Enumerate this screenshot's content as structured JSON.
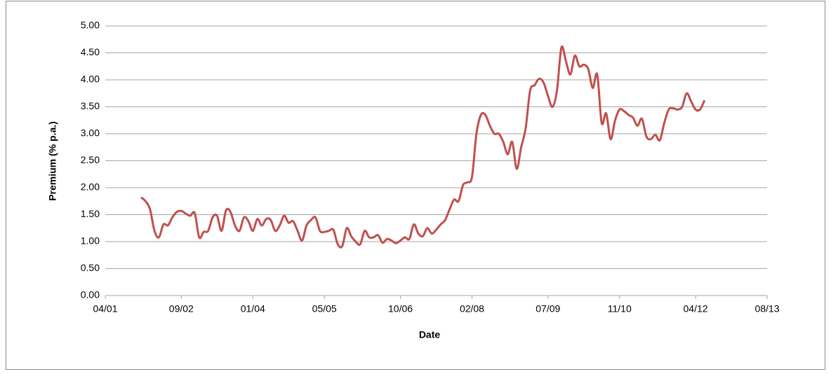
{
  "chart_data": {
    "type": "line",
    "x_label": "Date",
    "y_label": "Premium (% p.a.)",
    "x": [
      "12/01",
      "01/02",
      "02/02",
      "03/02",
      "04/02",
      "05/02",
      "06/02",
      "07/02",
      "08/02",
      "09/02",
      "10/02",
      "11/02",
      "12/02",
      "01/03",
      "02/03",
      "03/03",
      "04/03",
      "05/03",
      "06/03",
      "07/03",
      "08/03",
      "09/03",
      "10/03",
      "11/03",
      "12/03",
      "01/04",
      "02/04",
      "03/04",
      "04/04",
      "05/04",
      "06/04",
      "07/04",
      "08/04",
      "09/04",
      "10/04",
      "11/04",
      "12/04",
      "01/05",
      "02/05",
      "03/05",
      "04/05",
      "05/05",
      "06/05",
      "07/05",
      "08/05",
      "09/05",
      "10/05",
      "11/05",
      "12/05",
      "01/06",
      "02/06",
      "03/06",
      "04/06",
      "05/06",
      "06/06",
      "07/06",
      "08/06",
      "09/06",
      "10/06",
      "11/06",
      "12/06",
      "01/07",
      "02/07",
      "03/07",
      "04/07",
      "05/07",
      "06/07",
      "07/07",
      "08/07",
      "09/07",
      "10/07",
      "11/07",
      "12/07",
      "01/08",
      "02/08",
      "03/08",
      "04/08",
      "05/08",
      "06/08",
      "07/08",
      "08/08",
      "09/08",
      "10/08",
      "11/08",
      "12/08",
      "01/09",
      "02/09",
      "03/09",
      "04/09",
      "05/09",
      "06/09",
      "07/09",
      "08/09",
      "09/09",
      "10/09",
      "11/09",
      "12/09",
      "01/10",
      "02/10",
      "03/10",
      "04/10",
      "05/10",
      "06/10",
      "07/10",
      "08/10",
      "09/10",
      "10/10",
      "11/10",
      "12/10",
      "01/11",
      "02/11",
      "03/11",
      "04/11",
      "05/11",
      "06/11",
      "07/11",
      "08/11",
      "09/11",
      "10/11",
      "11/11",
      "12/11",
      "01/12",
      "02/12",
      "03/12",
      "04/12",
      "05/12",
      "06/12"
    ],
    "series": [
      {
        "name": "Premium",
        "color": "#c0504d",
        "values": [
          1.82,
          1.75,
          1.6,
          1.2,
          1.08,
          1.32,
          1.3,
          1.45,
          1.55,
          1.57,
          1.52,
          1.48,
          1.53,
          1.08,
          1.18,
          1.2,
          1.45,
          1.48,
          1.2,
          1.58,
          1.55,
          1.3,
          1.2,
          1.45,
          1.38,
          1.2,
          1.42,
          1.3,
          1.42,
          1.4,
          1.2,
          1.3,
          1.48,
          1.35,
          1.38,
          1.2,
          1.02,
          1.3,
          1.4,
          1.45,
          1.2,
          1.18,
          1.2,
          1.22,
          0.95,
          0.92,
          1.25,
          1.1,
          1.0,
          0.95,
          1.2,
          1.08,
          1.08,
          1.12,
          0.98,
          1.05,
          1.02,
          0.97,
          1.02,
          1.08,
          1.05,
          1.32,
          1.15,
          1.1,
          1.25,
          1.15,
          1.22,
          1.32,
          1.4,
          1.6,
          1.78,
          1.75,
          2.05,
          2.1,
          2.2,
          3.0,
          3.35,
          3.35,
          3.15,
          3.0,
          3.0,
          2.85,
          2.62,
          2.85,
          2.35,
          2.75,
          3.1,
          3.8,
          3.9,
          4.02,
          3.95,
          3.7,
          3.5,
          3.8,
          4.6,
          4.35,
          4.1,
          4.45,
          4.25,
          4.28,
          4.2,
          3.85,
          4.1,
          3.2,
          3.38,
          2.9,
          3.25,
          3.45,
          3.42,
          3.35,
          3.3,
          3.15,
          3.28,
          2.95,
          2.9,
          2.98,
          2.88,
          3.2,
          3.45,
          3.47,
          3.45,
          3.5,
          3.75,
          3.6,
          3.45,
          3.45,
          3.62
        ]
      }
    ],
    "xlim": [
      "04/01",
      "08/13"
    ],
    "xticks": [
      "04/01",
      "09/02",
      "01/04",
      "05/05",
      "10/06",
      "02/08",
      "07/09",
      "11/10",
      "04/12",
      "08/13"
    ],
    "ylim": [
      0,
      5
    ],
    "yticks": [
      {
        "value": 0,
        "label": "0.00"
      },
      {
        "value": 0.5,
        "label": "0.50"
      },
      {
        "value": 1,
        "label": "1.00"
      },
      {
        "value": 1.5,
        "label": "1.50"
      },
      {
        "value": 2,
        "label": "2.00"
      },
      {
        "value": 2.5,
        "label": "2.50"
      },
      {
        "value": 3,
        "label": "3.00"
      },
      {
        "value": 3.5,
        "label": "3.50"
      },
      {
        "value": 4,
        "label": "4.00"
      },
      {
        "value": 4.5,
        "label": "4.50"
      },
      {
        "value": 5,
        "label": "5.00"
      }
    ],
    "grid": true
  }
}
